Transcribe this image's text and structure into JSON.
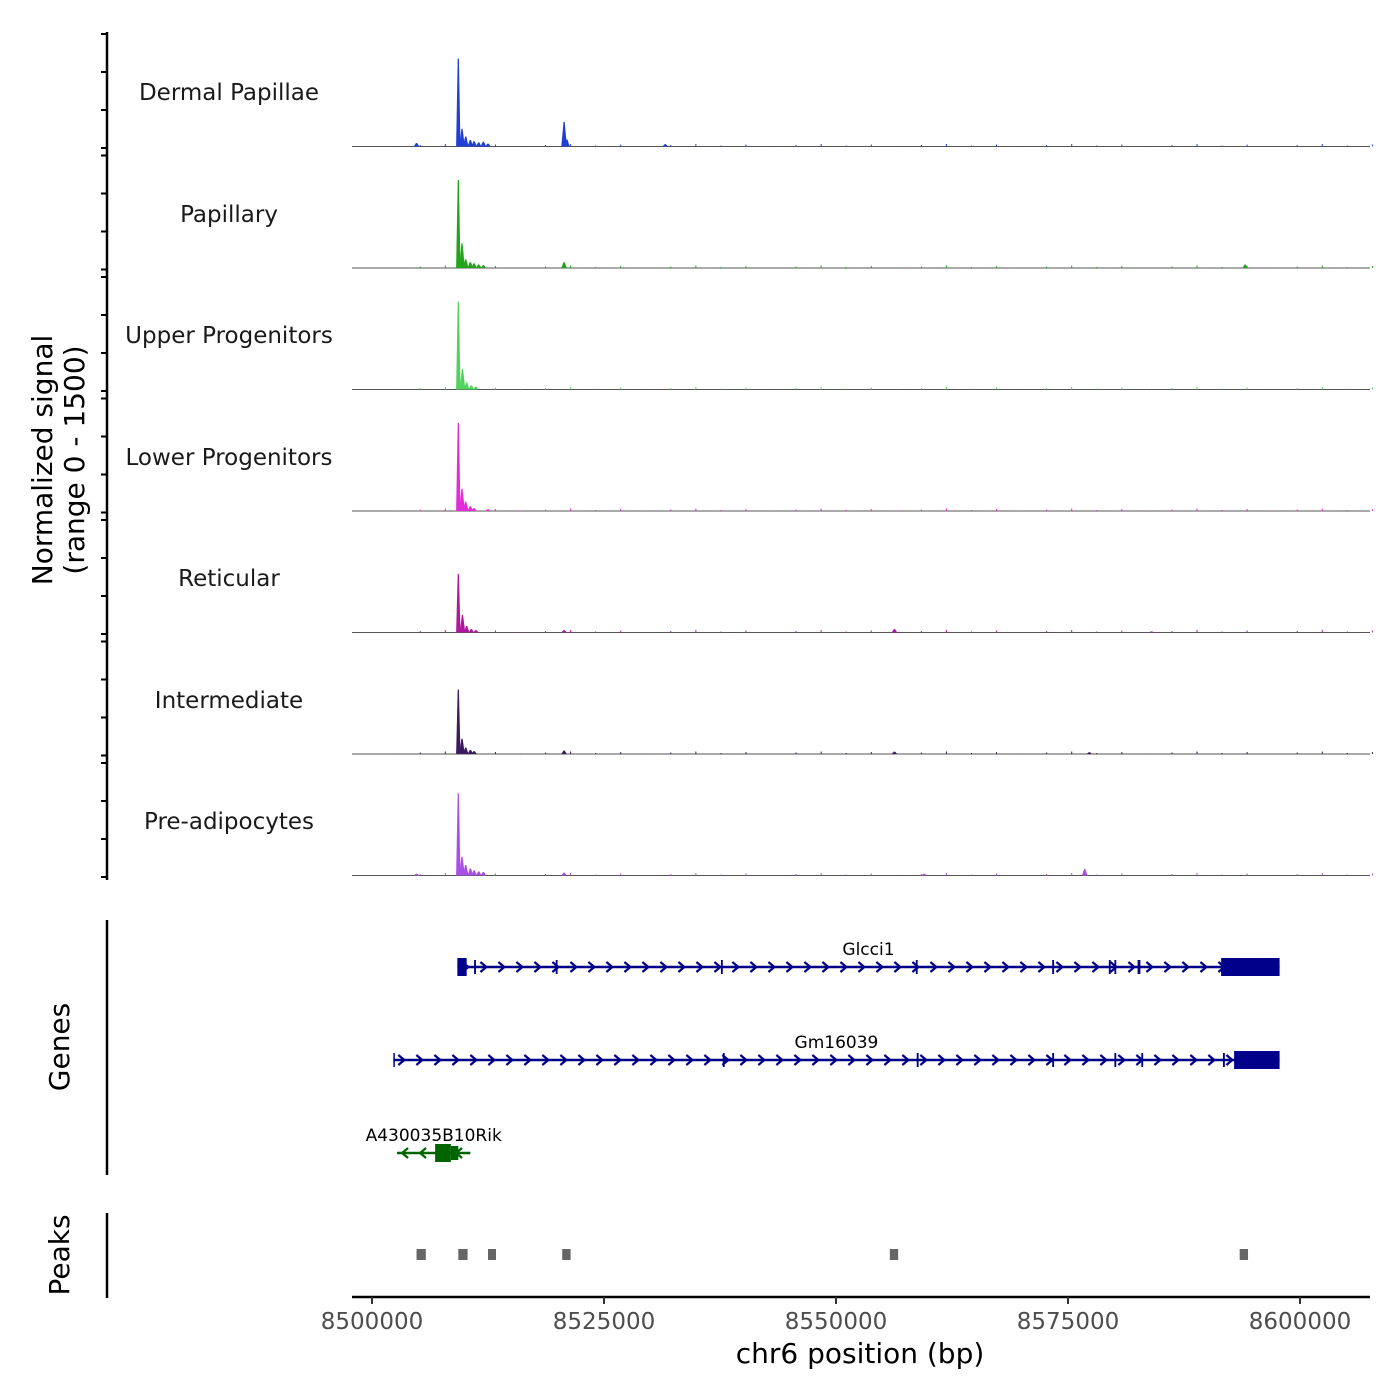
{
  "chart_data": {
    "type": "area",
    "title": "",
    "xlabel": "chr6 position (bp)",
    "ylabel": "Normalized signal (range 0 - 1500)",
    "ylabel_lines": [
      "Normalized signal",
      "(range 0 - 1500)"
    ],
    "xlim": [
      8495000,
      8610000
    ],
    "ylim": [
      0,
      1500
    ],
    "x_ticks": [
      8500000,
      8525000,
      8550000,
      8575000,
      8600000
    ],
    "x_tick_labels": [
      "8500000",
      "8525000",
      "8550000",
      "8575000",
      "8600000"
    ],
    "series": [
      {
        "name": "Dermal Papillae",
        "color": "#1f3fd6",
        "peaks": [
          [
            8504800,
            60
          ],
          [
            8509300,
            1500
          ],
          [
            8509700,
            300
          ],
          [
            8510100,
            170
          ],
          [
            8510600,
            110
          ],
          [
            8511000,
            90
          ],
          [
            8511500,
            70
          ],
          [
            8512000,
            80
          ],
          [
            8512500,
            50
          ],
          [
            8520700,
            420
          ],
          [
            8521000,
            120
          ],
          [
            8531600,
            40
          ]
        ]
      },
      {
        "name": "Papillary",
        "color": "#22a51c",
        "peaks": [
          [
            8509300,
            1500
          ],
          [
            8509700,
            420
          ],
          [
            8510100,
            150
          ],
          [
            8510600,
            100
          ],
          [
            8511000,
            80
          ],
          [
            8511500,
            60
          ],
          [
            8512000,
            50
          ],
          [
            8520700,
            100
          ],
          [
            8594100,
            60
          ]
        ]
      },
      {
        "name": "Upper Progenitors",
        "color": "#4fd35a",
        "peaks": [
          [
            8509300,
            1500
          ],
          [
            8509750,
            350
          ],
          [
            8510200,
            120
          ],
          [
            8510700,
            70
          ],
          [
            8511200,
            50
          ]
        ]
      },
      {
        "name": "Lower Progenitors",
        "color": "#e32bd7",
        "peaks": [
          [
            8509300,
            1500
          ],
          [
            8509700,
            380
          ],
          [
            8510100,
            160
          ],
          [
            8510600,
            80
          ],
          [
            8511000,
            50
          ],
          [
            8512500,
            30
          ]
        ]
      },
      {
        "name": "Reticular",
        "color": "#b0189b",
        "peaks": [
          [
            8509300,
            1000
          ],
          [
            8509750,
            300
          ],
          [
            8510200,
            110
          ],
          [
            8510700,
            60
          ],
          [
            8511200,
            40
          ],
          [
            8520700,
            40
          ],
          [
            8556300,
            60
          ],
          [
            8584000,
            20
          ]
        ]
      },
      {
        "name": "Intermediate",
        "color": "#3b1a5e",
        "peaks": [
          [
            8509300,
            1100
          ],
          [
            8509700,
            260
          ],
          [
            8510100,
            110
          ],
          [
            8510600,
            70
          ],
          [
            8511000,
            50
          ],
          [
            8520700,
            60
          ],
          [
            8556300,
            40
          ],
          [
            8577300,
            30
          ]
        ]
      },
      {
        "name": "Pre-adipocytes",
        "color": "#a94fe6",
        "peaks": [
          [
            8504800,
            30
          ],
          [
            8509300,
            1400
          ],
          [
            8509700,
            320
          ],
          [
            8510100,
            180
          ],
          [
            8510600,
            120
          ],
          [
            8511000,
            90
          ],
          [
            8511500,
            70
          ],
          [
            8512000,
            60
          ],
          [
            8520700,
            50
          ],
          [
            8576800,
            110
          ],
          [
            8559500,
            30
          ]
        ]
      }
    ],
    "genes_label": "Genes",
    "genes": [
      {
        "name": "Glcci1",
        "color": "#00008b",
        "strand": "+",
        "start": 8509200,
        "end": 8597800,
        "exons": [
          [
            8509200,
            8510200
          ],
          [
            8511000,
            8511200
          ],
          [
            8519800,
            8520000
          ],
          [
            8537600,
            8537800
          ],
          [
            8558600,
            8558800
          ],
          [
            8573300,
            8573500
          ],
          [
            8579400,
            8579600
          ],
          [
            8580000,
            8580200
          ],
          [
            8582500,
            8582800
          ],
          [
            8591500,
            8597800
          ]
        ]
      },
      {
        "name": "Gm16039",
        "color": "#00008b",
        "strand": "+",
        "start": 8502300,
        "end": 8597800,
        "exons": [
          [
            8502300,
            8502400
          ],
          [
            8537800,
            8538000
          ],
          [
            8558700,
            8558900
          ],
          [
            8573300,
            8573500
          ],
          [
            8580000,
            8580200
          ],
          [
            8582900,
            8583100
          ],
          [
            8591700,
            8591900
          ],
          [
            8592900,
            8597800
          ]
        ]
      },
      {
        "name": "A430035B10Rik",
        "color": "#006400",
        "strand": "-",
        "start": 8502700,
        "end": 8510600,
        "exons": [
          [
            8506800,
            8508500
          ],
          [
            8508500,
            8509300
          ]
        ]
      }
    ],
    "peaks_label": "Peaks",
    "peaks": [
      [
        8504800,
        8505800
      ],
      [
        8509300,
        8510300
      ],
      [
        8512500,
        8513300
      ],
      [
        8520500,
        8521400
      ],
      [
        8555800,
        8556700
      ],
      [
        8593500,
        8594400
      ]
    ],
    "peak_color": "#666666"
  }
}
